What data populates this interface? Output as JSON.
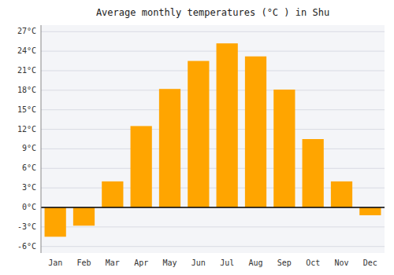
{
  "chart_data": {
    "type": "bar",
    "title": "Average monthly temperatures (°C ) in Shu",
    "categories": [
      "Jan",
      "Feb",
      "Mar",
      "Apr",
      "May",
      "Jun",
      "Jul",
      "Aug",
      "Sep",
      "Oct",
      "Nov",
      "Dec"
    ],
    "values": [
      -4.5,
      -2.8,
      4.0,
      12.5,
      18.2,
      22.5,
      25.2,
      23.2,
      18.1,
      10.5,
      4.0,
      -1.2
    ],
    "color": "#FFA500",
    "ylim": [
      -7,
      28
    ],
    "yticks": [
      {
        "value": -6,
        "label": "-6°C"
      },
      {
        "value": -3,
        "label": "-3°C"
      },
      {
        "value": 0,
        "label": "0°C"
      },
      {
        "value": 3,
        "label": "3°C"
      },
      {
        "value": 6,
        "label": "6°C"
      },
      {
        "value": 9,
        "label": "9°C"
      },
      {
        "value": 12,
        "label": "12°C"
      },
      {
        "value": 15,
        "label": "15°C"
      },
      {
        "value": 18,
        "label": "18°C"
      },
      {
        "value": 21,
        "label": "21°C"
      },
      {
        "value": 24,
        "label": "24°C"
      },
      {
        "value": 27,
        "label": "27°C"
      }
    ],
    "grid": true
  }
}
